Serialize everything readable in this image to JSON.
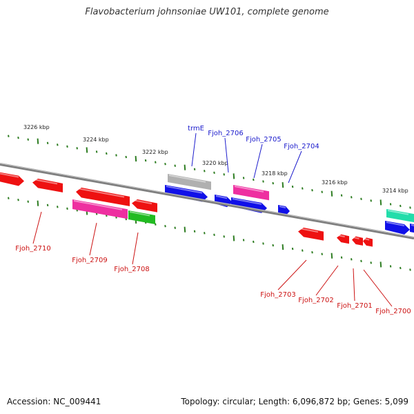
{
  "title": "Flavobacterium johnsoniae UW101, complete genome",
  "footer": {
    "accession": "Accession: NC_009441",
    "stats": "Topology: circular; Length: 6,096,872 bp; Genes: 5,099"
  },
  "colors": {
    "backbone": "#7f7f7f",
    "tick": "#2e7d22",
    "forward_label": "#1a1acc",
    "reverse_label": "#cc1111",
    "blue": "#1010e8",
    "red": "#ee1111",
    "magenta": "#ee2fa0",
    "green": "#22bb22",
    "gray": "#b0b0b0",
    "teal": "#22ddaa"
  },
  "scale_labels": [
    "3226 kbp",
    "3224 kbp",
    "3222 kbp",
    "3220 kbp",
    "3218 kbp",
    "3216 kbp",
    "3214 kbp"
  ],
  "labels_forward": [
    "trmE",
    "Fjoh_2706",
    "Fjoh_2705",
    "Fjoh_2704"
  ],
  "labels_reverse": [
    "Fjoh_2710",
    "Fjoh_2709",
    "Fjoh_2708",
    "Fjoh_2703",
    "Fjoh_2702",
    "Fjoh_2701",
    "Fjoh_2700"
  ]
}
